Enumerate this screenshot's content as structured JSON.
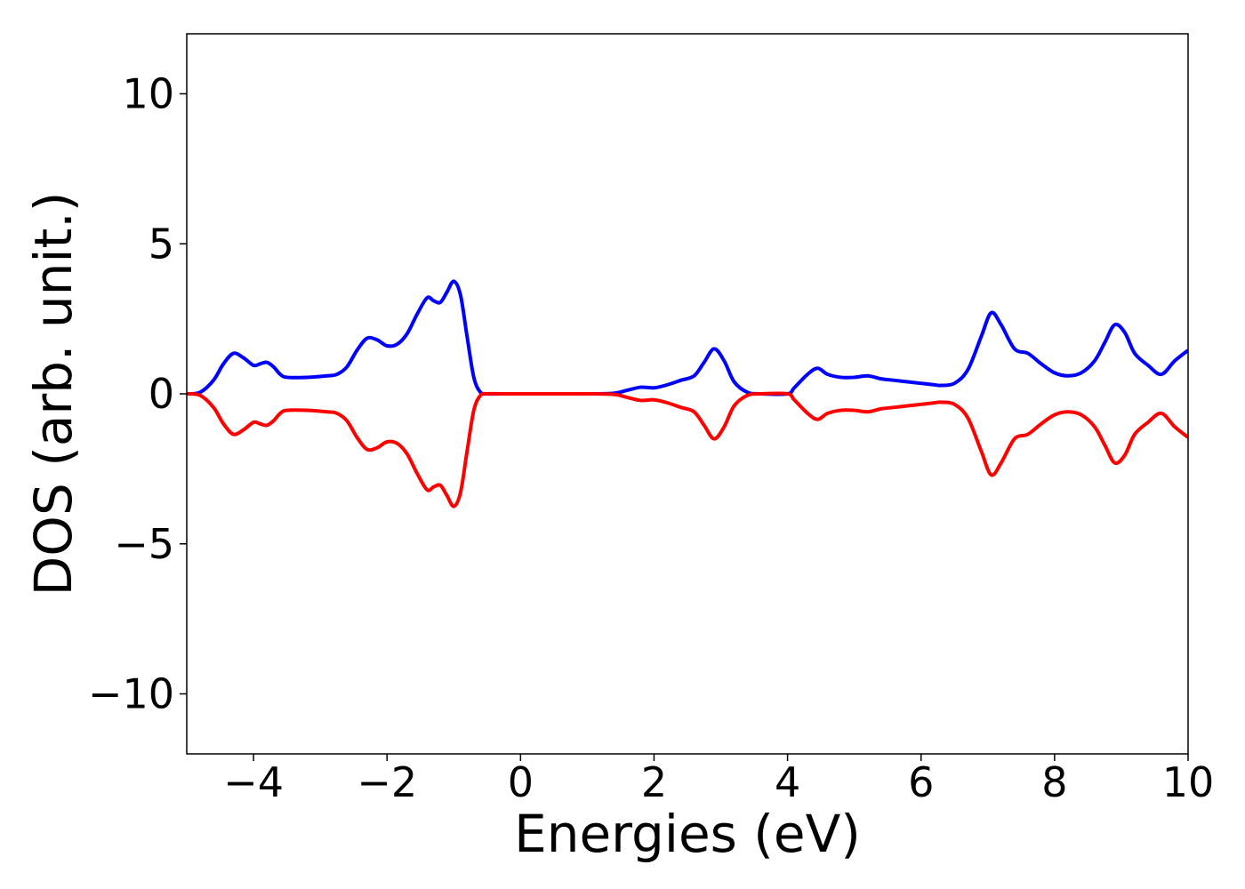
{
  "chart_data": {
    "type": "line",
    "title": "",
    "xlabel": "Energies (eV)",
    "ylabel": "DOS (arb. unit.)",
    "xlim": [
      -5,
      10
    ],
    "ylim": [
      -12,
      12
    ],
    "xticks": [
      -4,
      -2,
      0,
      2,
      4,
      6,
      8,
      10
    ],
    "xtick_labels": [
      "−4",
      "−2",
      "0",
      "2",
      "4",
      "6",
      "8",
      "10"
    ],
    "yticks": [
      10,
      5,
      0,
      -5,
      -10
    ],
    "ytick_labels": [
      "10",
      "5",
      "0",
      "−5",
      "−10"
    ],
    "grid": false,
    "legend": "none",
    "series": [
      {
        "color": "#0000ff",
        "x": [
          -5.0,
          -4.8,
          -4.6,
          -4.45,
          -4.3,
          -4.15,
          -4.0,
          -3.9,
          -3.8,
          -3.7,
          -3.6,
          -3.5,
          -3.2,
          -2.9,
          -2.75,
          -2.6,
          -2.45,
          -2.3,
          -2.15,
          -2.0,
          -1.85,
          -1.7,
          -1.55,
          -1.4,
          -1.3,
          -1.2,
          -1.1,
          -1.0,
          -0.9,
          -0.8,
          -0.7,
          -0.6,
          -0.5,
          -0.3,
          0.0,
          0.5,
          1.0,
          1.4,
          1.6,
          1.8,
          2.0,
          2.2,
          2.4,
          2.6,
          2.75,
          2.9,
          3.05,
          3.2,
          3.4,
          3.6,
          4.0,
          4.1,
          4.3,
          4.45,
          4.6,
          4.8,
          5.0,
          5.2,
          5.4,
          5.6,
          5.8,
          6.0,
          6.2,
          6.3,
          6.5,
          6.7,
          6.9,
          7.05,
          7.2,
          7.4,
          7.6,
          7.8,
          8.0,
          8.2,
          8.4,
          8.6,
          8.75,
          8.9,
          9.05,
          9.2,
          9.4,
          9.6,
          9.8,
          10.0
        ],
        "y": [
          0.0,
          0.05,
          0.45,
          1.0,
          1.35,
          1.2,
          0.95,
          1.0,
          1.05,
          0.9,
          0.65,
          0.55,
          0.55,
          0.6,
          0.65,
          0.9,
          1.45,
          1.85,
          1.8,
          1.6,
          1.65,
          2.0,
          2.65,
          3.2,
          3.1,
          3.05,
          3.4,
          3.75,
          3.3,
          1.9,
          0.55,
          0.05,
          0.0,
          0.0,
          0.0,
          0.0,
          0.0,
          0.02,
          0.12,
          0.22,
          0.2,
          0.3,
          0.45,
          0.6,
          1.05,
          1.5,
          1.1,
          0.4,
          0.05,
          0.0,
          0.0,
          0.2,
          0.65,
          0.85,
          0.65,
          0.55,
          0.55,
          0.6,
          0.5,
          0.45,
          0.4,
          0.35,
          0.3,
          0.28,
          0.35,
          0.8,
          1.9,
          2.7,
          2.3,
          1.5,
          1.35,
          1.0,
          0.7,
          0.6,
          0.7,
          1.1,
          1.7,
          2.3,
          2.05,
          1.35,
          0.95,
          0.65,
          1.1,
          1.45
        ]
      },
      {
        "color": "#ff0000",
        "x": [
          -5.0,
          -4.8,
          -4.6,
          -4.45,
          -4.3,
          -4.15,
          -4.0,
          -3.9,
          -3.8,
          -3.7,
          -3.6,
          -3.5,
          -3.2,
          -2.9,
          -2.75,
          -2.6,
          -2.45,
          -2.3,
          -2.15,
          -2.0,
          -1.85,
          -1.7,
          -1.55,
          -1.4,
          -1.3,
          -1.2,
          -1.1,
          -1.0,
          -0.9,
          -0.8,
          -0.7,
          -0.6,
          -0.5,
          -0.3,
          0.0,
          0.5,
          1.0,
          1.4,
          1.6,
          1.8,
          2.0,
          2.2,
          2.4,
          2.6,
          2.75,
          2.9,
          3.05,
          3.2,
          3.4,
          3.6,
          4.0,
          4.1,
          4.3,
          4.45,
          4.6,
          4.8,
          5.0,
          5.2,
          5.4,
          5.6,
          5.8,
          6.0,
          6.2,
          6.3,
          6.5,
          6.7,
          6.9,
          7.05,
          7.2,
          7.4,
          7.6,
          7.8,
          8.0,
          8.2,
          8.4,
          8.6,
          8.75,
          8.9,
          9.05,
          9.2,
          9.4,
          9.6,
          9.8,
          10.0
        ],
        "y": [
          0.0,
          -0.05,
          -0.45,
          -1.0,
          -1.35,
          -1.2,
          -0.95,
          -1.0,
          -1.05,
          -0.9,
          -0.65,
          -0.55,
          -0.55,
          -0.6,
          -0.65,
          -0.9,
          -1.45,
          -1.85,
          -1.8,
          -1.6,
          -1.65,
          -2.0,
          -2.65,
          -3.2,
          -3.1,
          -3.05,
          -3.4,
          -3.75,
          -3.3,
          -1.9,
          -0.55,
          -0.05,
          0.0,
          0.0,
          0.0,
          0.0,
          0.0,
          -0.02,
          -0.12,
          -0.22,
          -0.2,
          -0.3,
          -0.45,
          -0.6,
          -1.05,
          -1.5,
          -1.1,
          -0.4,
          -0.05,
          0.0,
          0.0,
          -0.2,
          -0.65,
          -0.85,
          -0.65,
          -0.55,
          -0.55,
          -0.6,
          -0.5,
          -0.45,
          -0.4,
          -0.35,
          -0.3,
          -0.28,
          -0.35,
          -0.8,
          -1.9,
          -2.7,
          -2.3,
          -1.5,
          -1.35,
          -1.0,
          -0.7,
          -0.6,
          -0.7,
          -1.1,
          -1.7,
          -2.3,
          -2.05,
          -1.35,
          -0.95,
          -0.65,
          -1.1,
          -1.45
        ]
      }
    ]
  }
}
